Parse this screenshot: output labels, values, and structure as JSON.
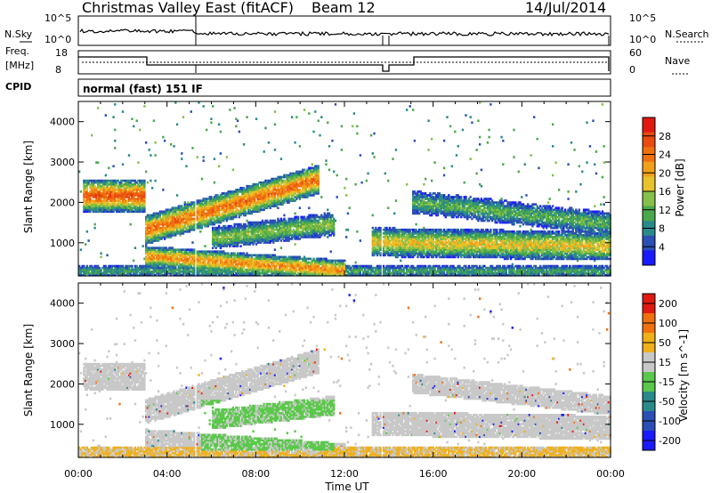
{
  "header": {
    "title": "Christmas Valley East (fitACF)",
    "beam": "Beam 12",
    "date": "14/Jul/2014"
  },
  "ancillary": {
    "nsky_label": "N.Sky",
    "nsearch_label": "N.Search",
    "nsky_ticks": [
      "10^5",
      "10^0"
    ],
    "nsearch_ticks": [
      "10^5",
      "10^0"
    ],
    "freq_label_1": "Freq.",
    "freq_label_2": "[MHz]",
    "freq_ticks": [
      "18",
      "8"
    ],
    "nave_label": "Nave",
    "nave_ticks": [
      "60",
      "0"
    ],
    "cpid_label": "CPID",
    "cpid_text": "normal (fast) 151 IF"
  },
  "chart_data": [
    {
      "type": "heatmap",
      "parameter": "Power",
      "ylabel": "Slant Range [km]",
      "xlabel": "Time UT",
      "x_ticks": [
        "00:00",
        "04:00",
        "08:00",
        "12:00",
        "16:00",
        "20:00",
        "00:00"
      ],
      "x_range_hours": [
        0,
        24
      ],
      "y_ticks": [
        1000,
        2000,
        3000,
        4000
      ],
      "ylim": [
        180,
        4500
      ],
      "colorbar_label": "Power [dB]",
      "colorbar_ticks": [
        4,
        8,
        12,
        16,
        20,
        24,
        28
      ],
      "colorbar_colors": [
        "#1a1aff",
        "#2a4fb5",
        "#2a8a8a",
        "#4aa84a",
        "#86c04a",
        "#e8c22a",
        "#f0a01a",
        "#f07010",
        "#e84a10",
        "#e01a10"
      ],
      "data_gaps_hours": [
        [
          5.2,
          5.3
        ],
        [
          13.6,
          13.7
        ]
      ],
      "bands": [
        {
          "t0": 0.2,
          "t1": 3.0,
          "r0": 1950,
          "r1": 2750,
          "peak_r": 2150,
          "level": 26,
          "width": 220
        },
        {
          "t0": 3.0,
          "t1": 10.8,
          "r0": 1100,
          "r1": 2650,
          "peak_r_start": 1300,
          "peak_r_end": 2550,
          "level": 24,
          "width": 200
        },
        {
          "t0": 3.0,
          "t1": 12.0,
          "r0": 350,
          "r1": 900,
          "peak_r_start": 650,
          "peak_r_end": 300,
          "level": 22,
          "width": 140
        },
        {
          "t0": 6.0,
          "t1": 11.5,
          "r0": 900,
          "r1": 1700,
          "peak_r_start": 1100,
          "peak_r_end": 1450,
          "level": 14,
          "width": 160
        },
        {
          "t0": 13.2,
          "t1": 24.0,
          "r0": 600,
          "r1": 1500,
          "peak_r_start": 1000,
          "peak_r_end": 900,
          "level": 18,
          "width": 200
        },
        {
          "t0": 15.0,
          "t1": 24.0,
          "r0": 1200,
          "r1": 2600,
          "peak_r_start": 2000,
          "peak_r_end": 1450,
          "level": 12,
          "width": 160
        },
        {
          "t0": 0.0,
          "t1": 24.0,
          "r0": 180,
          "r1": 400,
          "peak_r": 280,
          "level": 10,
          "width": 90
        }
      ]
    },
    {
      "type": "heatmap",
      "parameter": "Velocity",
      "ylabel": "Slant Range [km]",
      "xlabel": "Time UT",
      "x_ticks": [
        "00:00",
        "04:00",
        "08:00",
        "12:00",
        "16:00",
        "20:00",
        "00:00"
      ],
      "x_range_hours": [
        0,
        24
      ],
      "y_ticks": [
        1000,
        2000,
        3000,
        4000
      ],
      "ylim": [
        180,
        4500
      ],
      "colorbar_label": "Velocity [m s^-1]",
      "colorbar_ticks": [
        200,
        100,
        50,
        15,
        -15,
        -50,
        -100,
        -200
      ],
      "colorbar_colors": [
        "#1a1aff",
        "#2a4fb5",
        "#2a8a8a",
        "#5ac84a",
        "#c8c8c8",
        "#f0b01a",
        "#f07010",
        "#e01a10"
      ],
      "data_gaps_hours": [
        [
          5.2,
          5.3
        ],
        [
          13.6,
          13.7
        ]
      ]
    }
  ]
}
